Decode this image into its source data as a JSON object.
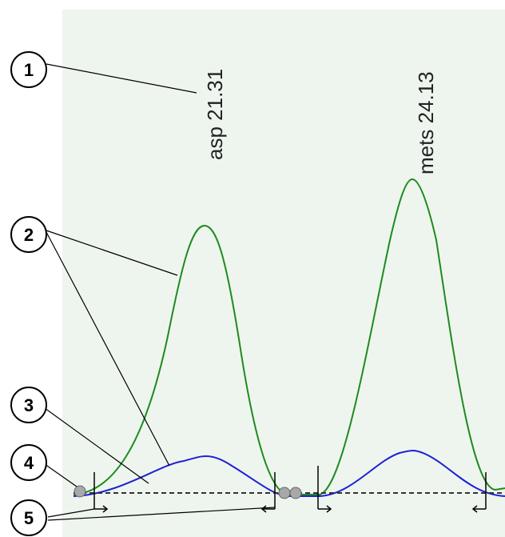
{
  "peaks": [
    {
      "name": "asp",
      "time": "21.31"
    },
    {
      "name": "mets",
      "time": "24.13"
    }
  ],
  "callouts": [
    "1",
    "2",
    "3",
    "4",
    "5"
  ],
  "colors": {
    "panel_bg": "#eef5ee",
    "green_trace": "#1f8a1f",
    "blue_trace": "#1f1fd6",
    "baseline": "#333333",
    "marker_fill": "#a8a8a8"
  }
}
